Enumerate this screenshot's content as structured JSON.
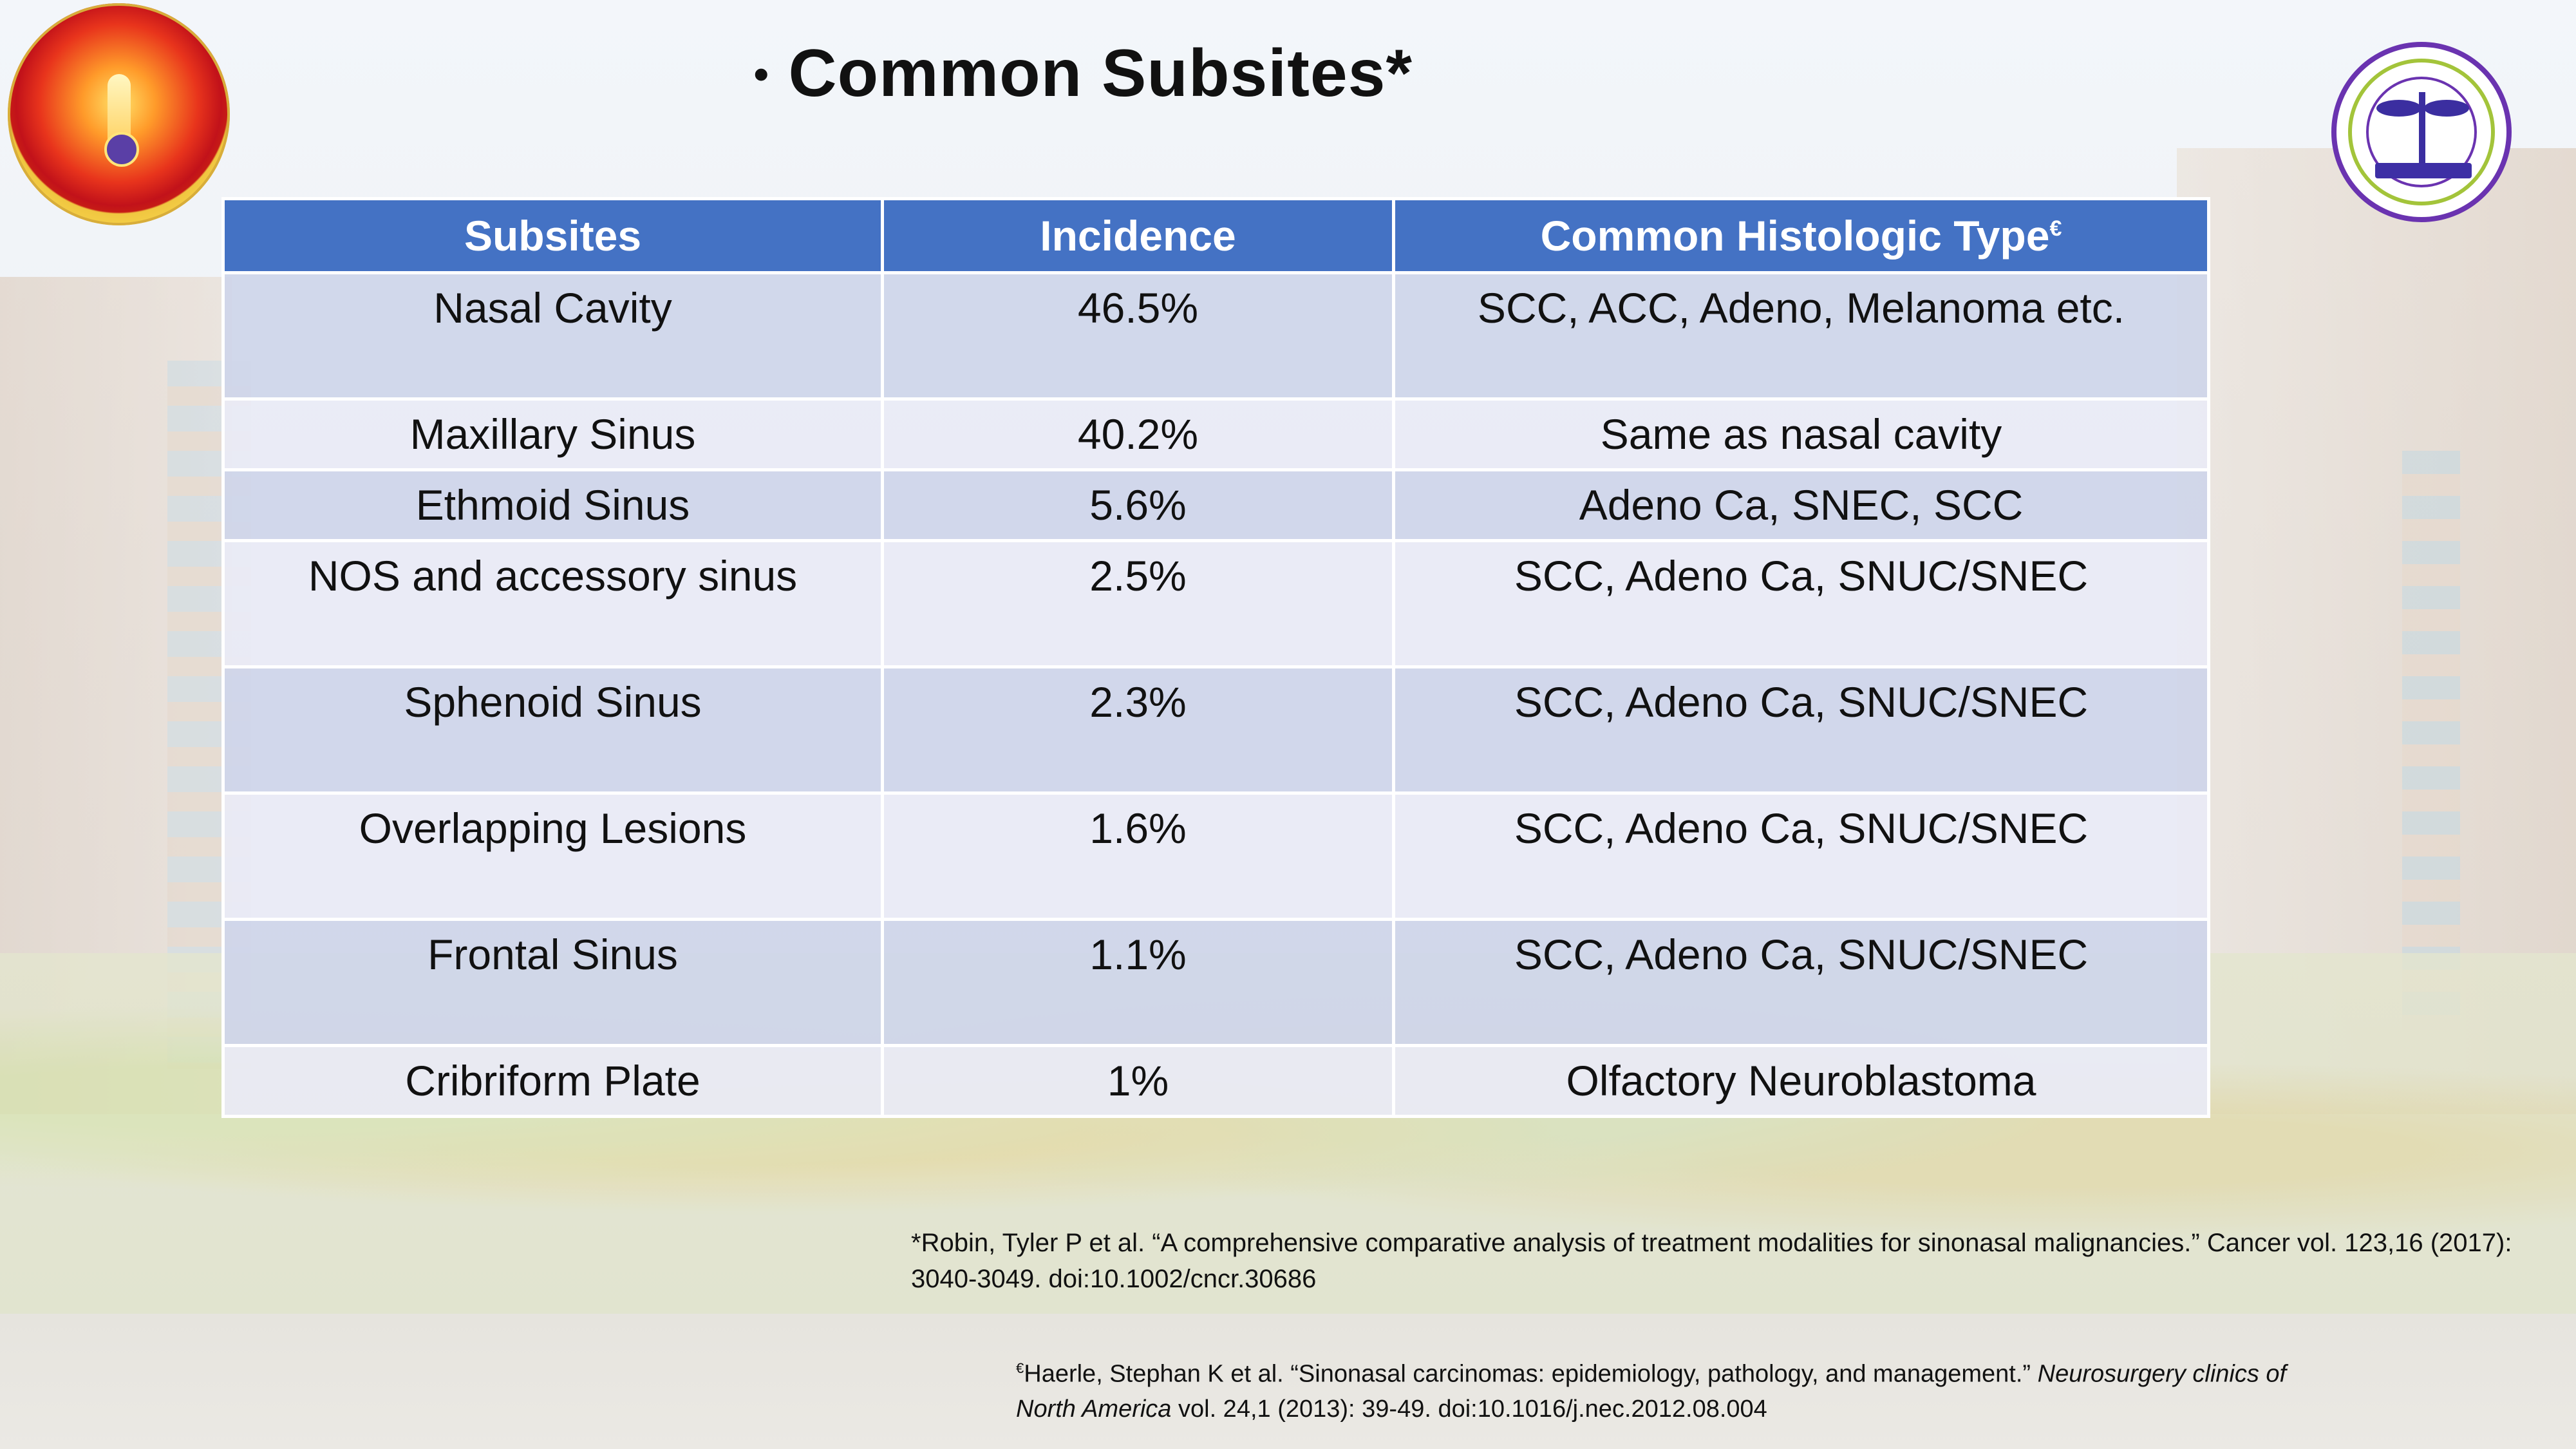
{
  "slide": {
    "bullet": "•",
    "title": "Common Subsites*"
  },
  "table": {
    "headers": {
      "subsites": "Subsites",
      "incidence": "Incidence",
      "histology": "Common Histologic Type",
      "histology_mark": "€"
    },
    "rows": [
      {
        "subsite": "Nasal Cavity",
        "incidence": "46.5%",
        "histology": "SCC, ACC, Adeno, Melanoma etc."
      },
      {
        "subsite": "Maxillary Sinus",
        "incidence": "40.2%",
        "histology": "Same as nasal cavity"
      },
      {
        "subsite": "Ethmoid Sinus",
        "incidence": "5.6%",
        "histology": "Adeno Ca, SNEC, SCC"
      },
      {
        "subsite": "NOS and accessory sinus",
        "incidence": "2.5%",
        "histology": "SCC, Adeno Ca, SNUC/SNEC"
      },
      {
        "subsite": "Sphenoid Sinus",
        "incidence": "2.3%",
        "histology": "SCC, Adeno Ca, SNUC/SNEC"
      },
      {
        "subsite": "Overlapping Lesions",
        "incidence": "1.6%",
        "histology": "SCC, Adeno Ca, SNUC/SNEC"
      },
      {
        "subsite": "Frontal Sinus",
        "incidence": "1.1%",
        "histology": "SCC, Adeno Ca, SNUC/SNEC"
      },
      {
        "subsite": "Cribriform Plate",
        "incidence": "1%",
        "histology": "Olfactory Neuroblastoma"
      }
    ]
  },
  "references": {
    "ref1": "*Robin, Tyler P et al. “A comprehensive comparative analysis of treatment modalities for sinonasal malignancies.” Cancer vol. 123,16 (2017): 3040-3049. doi:10.1002/cncr.30686",
    "ref2_mark": "€",
    "ref2_main": "Haerle, Stephan K et al. “Sinonasal carcinomas: epidemiology, pathology, and management.” ",
    "ref2_journal": "Neurosurgery clinics of North America",
    "ref2_tail": " vol. 24,1 (2013): 39-49. doi:10.1016/j.nec.2012.08.004"
  },
  "logos": {
    "left": "association-of-radiation-oncologists-west-bengal-logo",
    "right": "aiims-logo"
  }
}
